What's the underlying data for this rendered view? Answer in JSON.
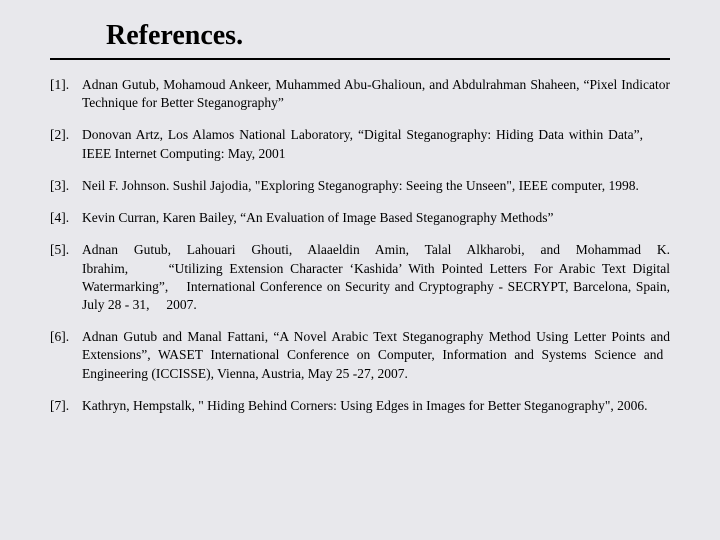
{
  "title": "References.",
  "colors": {
    "background": "#e8e8ec",
    "text": "#000000",
    "rule": "#000000"
  },
  "typography": {
    "title_fontsize": 28,
    "title_weight": "bold",
    "body_fontsize": 13.5,
    "font_family": "Times New Roman"
  },
  "references": [
    {
      "num": "[1].",
      "text": "Adnan Gutub, Mohamoud Ankeer, Muhammed Abu-Ghalioun, and Abdulrahman Shaheen, “Pixel Indicator Technique for Better Steganography”"
    },
    {
      "num": "[2].",
      "text": "Donovan Artz, Los Alamos National Laboratory, “Digital Steganography: Hiding Data within Data”,  IEEE Internet Computing: May, 2001"
    },
    {
      "num": "[3].",
      "text": "Neil F. Johnson. Sushil Jajodia, \"Exploring Steganography: Seeing the Unseen\", IEEE computer, 1998."
    },
    {
      "num": "[4].",
      "text": "Kevin Curran, Karen Bailey, “An Evaluation of Image Based Steganography Methods”"
    },
    {
      "num": "[5].",
      "text": "Adnan Gutub, Lahouari Ghouti, Alaaeldin Amin, Talal Alkharobi, and Mohammad K. Ibrahim,   “Utilizing Extension Character ‘Kashida’ With Pointed Letters For Arabic Text Digital Watermarking”,  International Conference on Security and Cryptography - SECRYPT, Barcelona, Spain, July 28 - 31,  2007."
    },
    {
      "num": "[6].",
      "text": "Adnan Gutub and Manal Fattani, “A Novel Arabic Text Steganography Method Using Letter Points and Extensions”, WASET International Conference on Computer, Information and Systems Science and  Engineering (ICCISSE), Vienna, Austria, May 25 -27, 2007."
    },
    {
      "num": "[7].",
      "text": "Kathryn, Hempstalk, \" Hiding Behind Corners: Using Edges in Images for Better Steganography\", 2006."
    }
  ]
}
